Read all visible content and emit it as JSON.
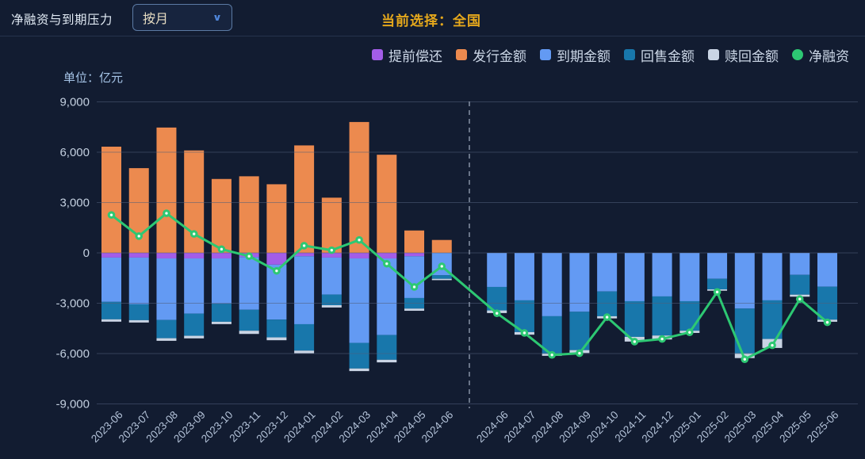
{
  "header": {
    "title": "净融资与到期压力",
    "dropdown_value": "按月",
    "current_selection": "当前选择：全国"
  },
  "icons": {
    "dropdown_chevron": "∨"
  },
  "legend": {
    "items": [
      {
        "label": "提前偿还",
        "color": "#a35de8",
        "shape": "square"
      },
      {
        "label": "发行金额",
        "color": "#ec8a4f",
        "shape": "square"
      },
      {
        "label": "到期金额",
        "color": "#639af3",
        "shape": "square"
      },
      {
        "label": "回售金额",
        "color": "#1877ab",
        "shape": "square"
      },
      {
        "label": "赎回金额",
        "color": "#c9d4e4",
        "shape": "square"
      },
      {
        "label": "净融资",
        "color": "#2dc873",
        "shape": "circle"
      }
    ]
  },
  "chart_data": {
    "type": "bar",
    "subtype": "stacked bars above/below zero with net-financing line overlay; dashed divider separates historical period from future maturity pressure period",
    "categories": [
      "2023-06",
      "2023-07",
      "2023-08",
      "2023-09",
      "2023-10",
      "2023-11",
      "2023-12",
      "2024-01",
      "2024-02",
      "2024-03",
      "2024-04",
      "2024-05",
      "2024-06",
      "2024-06",
      "2024-07",
      "2024-08",
      "2024-09",
      "2024-10",
      "2024-11",
      "2024-12",
      "2025-01",
      "2025-02",
      "2025-03",
      "2025-04",
      "2025-05",
      "2025-06"
    ],
    "divider_after_category_index": 12,
    "y_axis": {
      "unit": "单位：亿元",
      "ticks": [
        9000,
        6000,
        3000,
        0,
        -3000,
        -6000,
        -9000
      ],
      "tick_labels": [
        "9,000",
        "6,000",
        "3,000",
        "0",
        "-3,000",
        "-6,000",
        "-9,000"
      ],
      "ylim": [
        -9000,
        9000
      ],
      "grid": true
    },
    "series": [
      {
        "key": "prepay",
        "name": "提前偿还",
        "type": "bar",
        "stack": "down",
        "color": "#a35de8",
        "values": [
          -280,
          -280,
          -330,
          -330,
          -330,
          -250,
          -700,
          -200,
          -280,
          -330,
          -330,
          -200,
          0,
          0,
          0,
          0,
          0,
          0,
          0,
          0,
          0,
          0,
          0,
          0,
          0,
          0
        ]
      },
      {
        "key": "issue",
        "name": "发行金额",
        "type": "bar",
        "stack": "up",
        "color": "#ec8a4f",
        "values": [
          6330,
          5050,
          7470,
          6105,
          4405,
          4565,
          4090,
          6405,
          3290,
          7800,
          5850,
          1335,
          770,
          0,
          0,
          0,
          0,
          0,
          0,
          0,
          0,
          0,
          0,
          0,
          0,
          0
        ]
      },
      {
        "key": "maturity",
        "name": "到期金额",
        "type": "bar",
        "stack": "down",
        "color": "#639af3",
        "values": [
          -2640,
          -2785,
          -3670,
          -3290,
          -2705,
          -3140,
          -3275,
          -4050,
          -2205,
          -5035,
          -4565,
          -2490,
          -1335,
          -2030,
          -2830,
          -3775,
          -3510,
          -2300,
          -2880,
          -2595,
          -2880,
          -1545,
          -3320,
          -2830,
          -1310,
          -2015
        ]
      },
      {
        "key": "resale",
        "name": "回售金额",
        "type": "bar",
        "stack": "down",
        "color": "#1877ab",
        "values": [
          -1040,
          -945,
          -1085,
          -1320,
          -1070,
          -1250,
          -1060,
          -1575,
          -630,
          -1525,
          -1475,
          -630,
          -210,
          -1400,
          -1890,
          -2220,
          -2285,
          -1475,
          -2125,
          -2330,
          -1760,
          -630,
          -2665,
          -2300,
          -1180,
          -1965
        ]
      },
      {
        "key": "redeem",
        "name": "赎回金额",
        "type": "bar",
        "stack": "down",
        "color": "#c9d4e4",
        "values": [
          -140,
          -140,
          -155,
          -155,
          -140,
          -190,
          -170,
          -160,
          -140,
          -155,
          -155,
          -130,
          -80,
          -155,
          -155,
          -140,
          -170,
          -130,
          -280,
          -235,
          -130,
          -80,
          -285,
          -535,
          -120,
          -125
        ]
      },
      {
        "key": "net",
        "name": "净融资",
        "type": "line",
        "color": "#2dc873",
        "values": [
          2260,
          1000,
          2360,
          1130,
          220,
          -200,
          -1070,
          430,
          160,
          770,
          -645,
          -2030,
          -800,
          -3600,
          -4770,
          -6080,
          -5980,
          -3830,
          -5290,
          -5130,
          -4735,
          -2330,
          -6340,
          -5510,
          -2750,
          -4140
        ]
      }
    ]
  }
}
